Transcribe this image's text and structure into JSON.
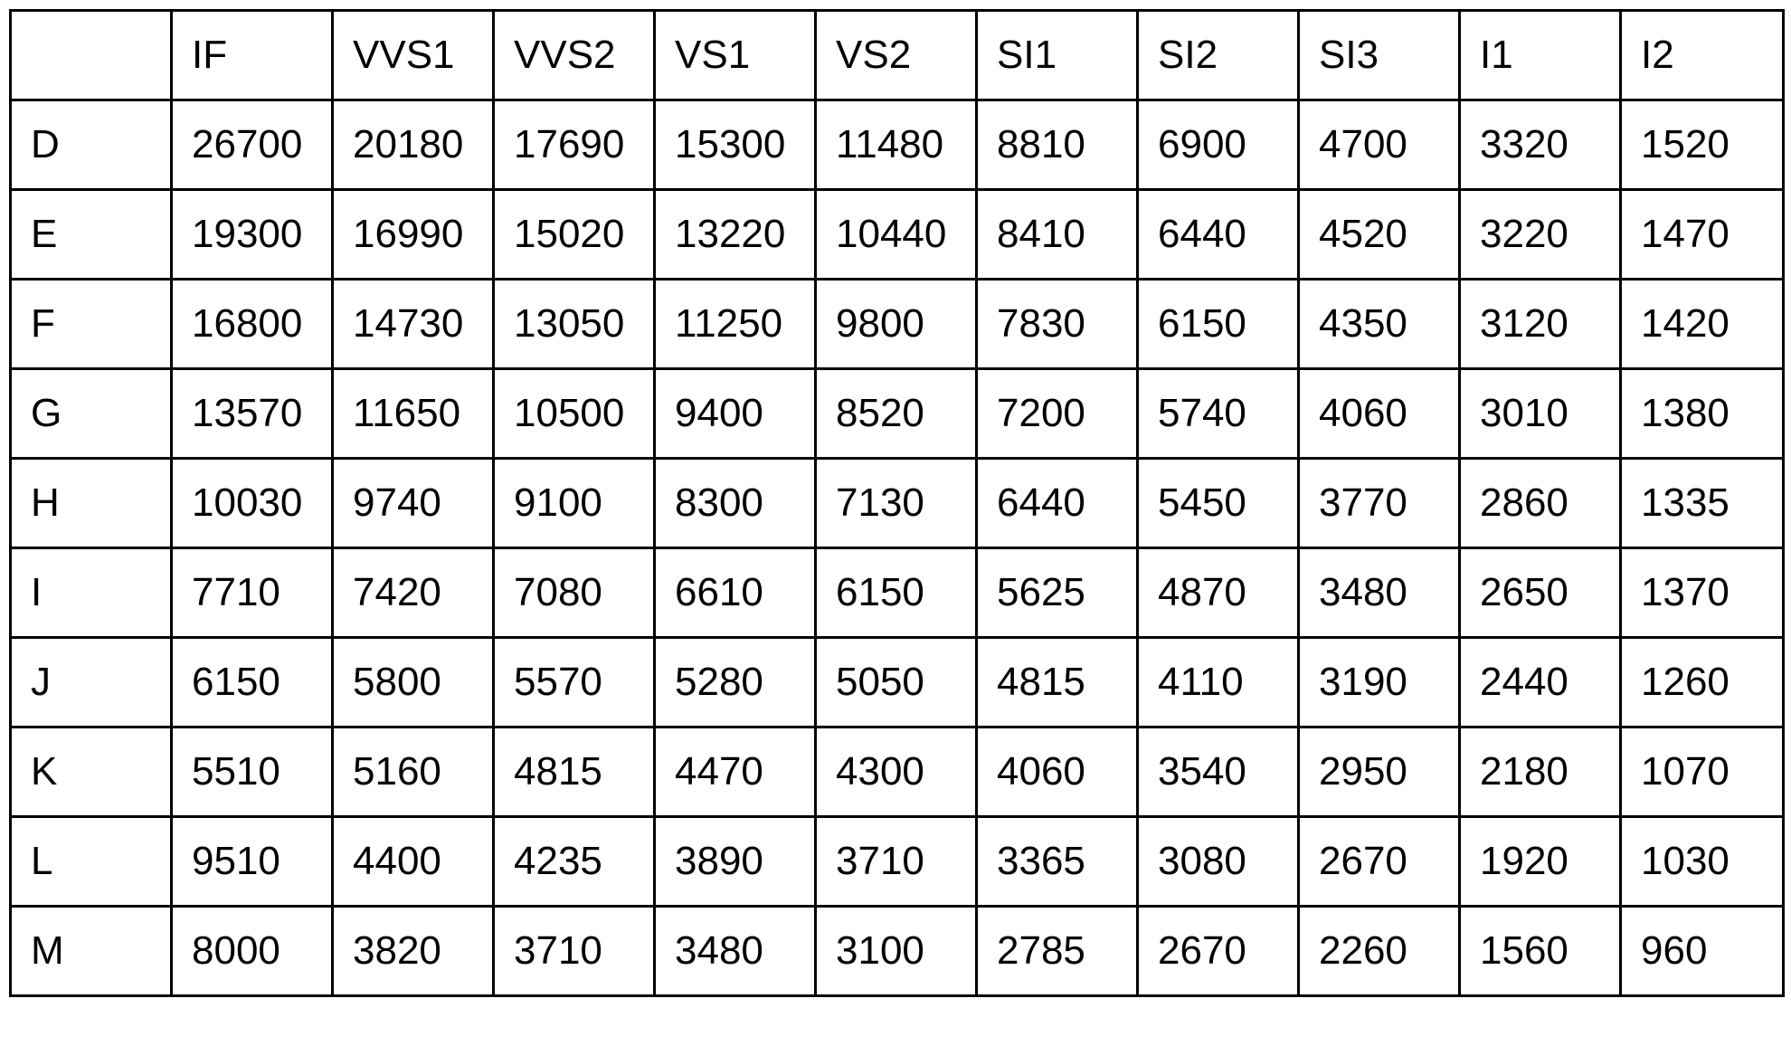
{
  "table": {
    "columns": [
      "",
      "IF",
      "VVS1",
      "VVS2",
      "VS1",
      "VS2",
      "SI1",
      "SI2",
      "SI3",
      "I1",
      "I2"
    ],
    "rows": [
      [
        "D",
        "26700",
        "20180",
        "17690",
        "15300",
        "11480",
        "8810",
        "6900",
        "4700",
        "3320",
        "1520"
      ],
      [
        "E",
        "19300",
        "16990",
        "15020",
        "13220",
        "10440",
        "8410",
        "6440",
        "4520",
        "3220",
        "1470"
      ],
      [
        "F",
        "16800",
        "14730",
        "13050",
        "11250",
        "9800",
        "7830",
        "6150",
        "4350",
        "3120",
        "1420"
      ],
      [
        "G",
        "13570",
        "11650",
        "10500",
        "9400",
        "8520",
        "7200",
        "5740",
        "4060",
        "3010",
        "1380"
      ],
      [
        "H",
        "10030",
        "9740",
        "9100",
        "8300",
        "7130",
        "6440",
        "5450",
        "3770",
        "2860",
        "1335"
      ],
      [
        "I",
        "7710",
        "7420",
        "7080",
        "6610",
        "6150",
        "5625",
        "4870",
        "3480",
        "2650",
        "1370"
      ],
      [
        "J",
        "6150",
        "5800",
        "5570",
        "5280",
        "5050",
        "4815",
        "4110",
        "3190",
        "2440",
        "1260"
      ],
      [
        "K",
        "5510",
        "5160",
        "4815",
        "4470",
        "4300",
        "4060",
        "3540",
        "2950",
        "2180",
        "1070"
      ],
      [
        "L",
        "9510",
        "4400",
        "4235",
        "3890",
        "3710",
        "3365",
        "3080",
        "2670",
        "1920",
        "1030"
      ],
      [
        "M",
        "8000",
        "3820",
        "3710",
        "3480",
        "3100",
        "2785",
        "2670",
        "2260",
        "1560",
        "960"
      ]
    ]
  }
}
